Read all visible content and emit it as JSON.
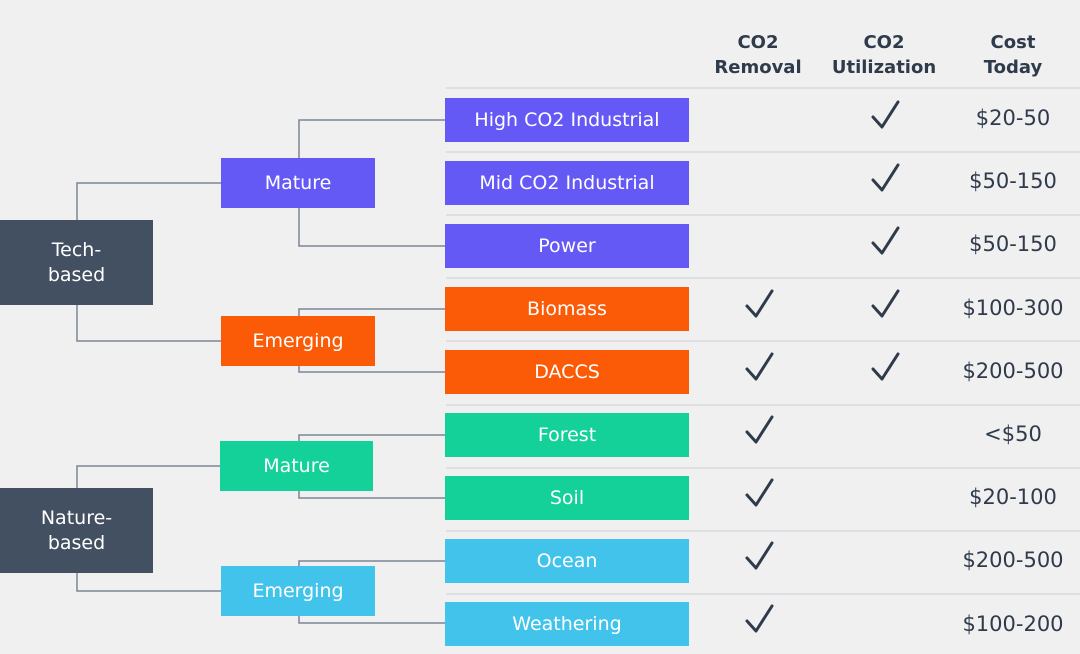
{
  "headers": {
    "removal": "CO2\nRemoval",
    "utilization": "CO2\nUtilization",
    "cost": "Cost\nToday"
  },
  "roots": [
    {
      "label": "Tech-\nbased",
      "color": "#435062"
    },
    {
      "label": "Nature-\nbased",
      "color": "#435062"
    }
  ],
  "branches": [
    {
      "label": "Mature",
      "color": "#6459f5"
    },
    {
      "label": "Emerging",
      "color": "#fb5a06"
    },
    {
      "label": "Mature",
      "color": "#14d19a"
    },
    {
      "label": "Emerging",
      "color": "#41c3ec"
    }
  ],
  "rows": [
    {
      "label": "High CO2 Industrial",
      "color": "#6459f5",
      "removal": false,
      "utilization": true,
      "cost": "$20-50"
    },
    {
      "label": "Mid CO2 Industrial",
      "color": "#6459f5",
      "removal": false,
      "utilization": true,
      "cost": "$50-150"
    },
    {
      "label": "Power",
      "color": "#6459f5",
      "removal": false,
      "utilization": true,
      "cost": "$50-150"
    },
    {
      "label": "Biomass",
      "color": "#fb5a06",
      "removal": true,
      "utilization": true,
      "cost": "$100-300"
    },
    {
      "label": "DACCS",
      "color": "#fb5a06",
      "removal": true,
      "utilization": true,
      "cost": "$200-500"
    },
    {
      "label": "Forest",
      "color": "#14d19a",
      "removal": true,
      "utilization": false,
      "cost": "<$50"
    },
    {
      "label": "Soil",
      "color": "#14d19a",
      "removal": true,
      "utilization": false,
      "cost": "$20-100"
    },
    {
      "label": "Ocean",
      "color": "#41c3ec",
      "removal": true,
      "utilization": false,
      "cost": "$200-500"
    },
    {
      "label": "Weathering",
      "color": "#41c3ec",
      "removal": true,
      "utilization": false,
      "cost": "$100-200"
    }
  ],
  "check_icon": "checkmark-icon",
  "line_color": "#7b8594"
}
